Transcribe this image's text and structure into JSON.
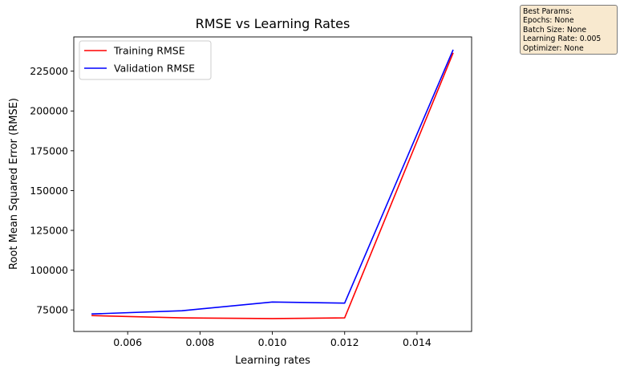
{
  "chart_data": {
    "type": "line",
    "title": "RMSE vs Learning Rates",
    "xlabel": "Learning rates",
    "ylabel": "Root Mean Squared Error (RMSE)",
    "x": [
      0.005,
      0.0075,
      0.01,
      0.012,
      0.015
    ],
    "series": [
      {
        "name": "Training RMSE",
        "color": "#ff0000",
        "values": [
          71500,
          70000,
          69600,
          70000,
          236500
        ]
      },
      {
        "name": "Validation RMSE",
        "color": "#0000ff",
        "values": [
          72500,
          74500,
          80000,
          79300,
          238500
        ]
      }
    ],
    "xlim": [
      0.00451,
      0.01551
    ],
    "ylim": [
      61500,
      246500
    ],
    "xticks": [
      0.006,
      0.008,
      0.01,
      0.012,
      0.014
    ],
    "xtick_labels": [
      "0.006",
      "0.008",
      "0.010",
      "0.012",
      "0.014"
    ],
    "yticks": [
      75000,
      100000,
      125000,
      150000,
      175000,
      200000,
      225000
    ],
    "ytick_labels": [
      "75000",
      "100000",
      "125000",
      "150000",
      "175000",
      "200000",
      "225000"
    ],
    "legend_position": "top-left",
    "grid": false
  },
  "annotation": {
    "lines": [
      "Best Params:",
      "Epochs: None",
      "Batch Size: None",
      "Learning Rate: 0.005",
      "Optimizer: None"
    ]
  }
}
